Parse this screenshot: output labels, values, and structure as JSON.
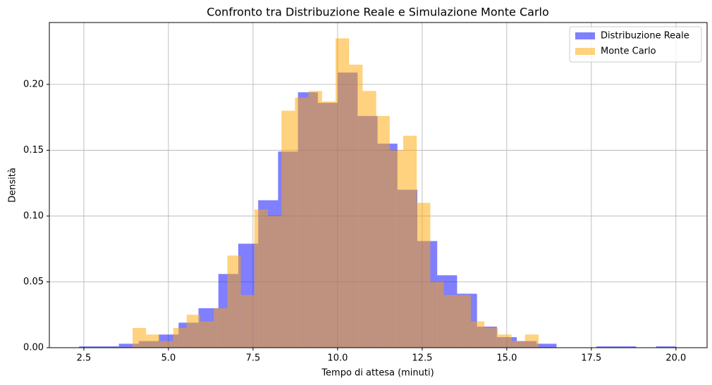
{
  "chart_data": {
    "type": "histogram",
    "title": "Confronto tra Distribuzione Reale e Simulazione Monte Carlo",
    "xlabel": "Tempo di attesa (minuti)",
    "ylabel": "Densità",
    "series": [
      {
        "name": "Distribuzione Reale",
        "color": "rgba(0,0,255,0.5)",
        "bins": [
          2.36,
          2.948,
          3.536,
          4.124,
          4.712,
          5.3,
          5.888,
          6.476,
          7.064,
          7.652,
          8.24,
          8.828,
          9.416,
          10.004,
          10.592,
          11.18,
          11.768,
          12.356,
          12.944,
          13.532,
          14.12,
          14.708,
          15.296,
          15.884,
          16.472,
          17.06,
          17.648,
          18.236,
          18.824,
          19.412,
          20.0
        ],
        "values": [
          0.001,
          0.001,
          0.003,
          0.005,
          0.01,
          0.019,
          0.03,
          0.056,
          0.079,
          0.112,
          0.149,
          0.194,
          0.186,
          0.209,
          0.176,
          0.155,
          0.12,
          0.081,
          0.055,
          0.041,
          0.016,
          0.008,
          0.005,
          0.003,
          0,
          0,
          0.001,
          0.001,
          0,
          0.001
        ]
      },
      {
        "name": "Monte Carlo",
        "color": "rgba(255,165,0,0.5)",
        "bins": [
          3.94,
          4.34,
          4.74,
          5.14,
          5.54,
          5.94,
          6.34,
          6.74,
          7.14,
          7.54,
          7.94,
          8.34,
          8.74,
          9.14,
          9.54,
          9.94,
          10.34,
          10.74,
          11.14,
          11.54,
          11.94,
          12.34,
          12.74,
          13.14,
          13.54,
          13.94,
          14.34,
          14.74,
          15.14,
          15.54,
          15.94
        ],
        "values": [
          0.015,
          0.01,
          0.005,
          0.015,
          0.025,
          0.02,
          0.03,
          0.07,
          0.04,
          0.105,
          0.1,
          0.18,
          0.19,
          0.195,
          0.187,
          0.235,
          0.215,
          0.195,
          0.176,
          0.15,
          0.161,
          0.11,
          0.05,
          0.04,
          0.04,
          0.02,
          0.015,
          0.01,
          0.005,
          0.01
        ]
      }
    ],
    "xlim": [
      1.48,
      20.92
    ],
    "ylim": [
      0,
      0.247
    ],
    "xticks": [
      2.5,
      {
        "value": 5,
        "label": "5.0"
      },
      7.5,
      {
        "value": 10,
        "label": "10.0"
      },
      12.5,
      {
        "value": 15,
        "label": "15.0"
      },
      17.5,
      {
        "value": 20,
        "label": "20.0"
      }
    ],
    "yticks": [
      {
        "value": 0,
        "label": "0.00"
      },
      0.05,
      {
        "value": 0.1,
        "label": "0.10"
      },
      0.15,
      {
        "value": 0.2,
        "label": "0.20"
      }
    ],
    "grid": true,
    "legend": "upper right"
  }
}
